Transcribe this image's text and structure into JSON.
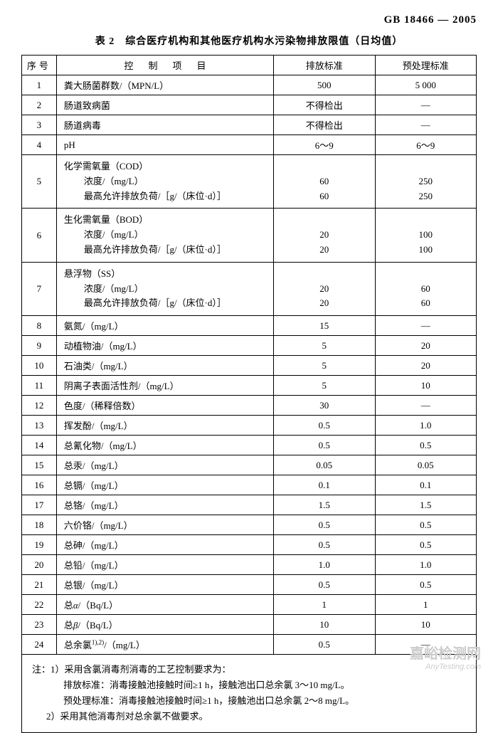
{
  "header": {
    "standard_code": "GB 18466 — 2005"
  },
  "title": "表 2　综合医疗机构和其他医疗机构水污染物排放限值（日均值）",
  "columns": {
    "seq": "序号",
    "item": "控　制　项　目",
    "std": "排放标准",
    "pre": "预处理标准"
  },
  "rows": [
    {
      "seq": "1",
      "item": "粪大肠菌群数/（MPN/L）",
      "std": "500",
      "pre": "5 000"
    },
    {
      "seq": "2",
      "item": "肠道致病菌",
      "std": "不得检出",
      "pre": "—"
    },
    {
      "seq": "3",
      "item": "肠道病毒",
      "std": "不得检出",
      "pre": "—"
    },
    {
      "seq": "4",
      "item": "pH",
      "std": "6～9",
      "pre": "6～9"
    },
    {
      "seq": "5",
      "multi": true,
      "main": "化学需氧量（COD）",
      "sub1": "浓度/（mg/L）",
      "sub2": "最高允许排放负荷/［g/（床位·d）］",
      "std1": "60",
      "std2": "60",
      "pre1": "250",
      "pre2": "250"
    },
    {
      "seq": "6",
      "multi": true,
      "main": "生化需氧量（BOD）",
      "sub1": "浓度/（mg/L）",
      "sub2": "最高允许排放负荷/［g/（床位·d）］",
      "std1": "20",
      "std2": "20",
      "pre1": "100",
      "pre2": "100"
    },
    {
      "seq": "7",
      "multi": true,
      "main": "悬浮物（SS）",
      "sub1": "浓度/（mg/L）",
      "sub2": "最高允许排放负荷/［g/（床位·d）］",
      "std1": "20",
      "std2": "20",
      "pre1": "60",
      "pre2": "60"
    },
    {
      "seq": "8",
      "item": "氨氮/（mg/L）",
      "std": "15",
      "pre": "—"
    },
    {
      "seq": "9",
      "item": "动植物油/（mg/L）",
      "std": "5",
      "pre": "20"
    },
    {
      "seq": "10",
      "item": "石油类/（mg/L）",
      "std": "5",
      "pre": "20"
    },
    {
      "seq": "11",
      "item": "阴离子表面活性剂/（mg/L）",
      "std": "5",
      "pre": "10"
    },
    {
      "seq": "12",
      "item": "色度/（稀释倍数）",
      "std": "30",
      "pre": "—"
    },
    {
      "seq": "13",
      "item": "挥发酚/（mg/L）",
      "std": "0.5",
      "pre": "1.0"
    },
    {
      "seq": "14",
      "item": "总氰化物/（mg/L）",
      "std": "0.5",
      "pre": "0.5"
    },
    {
      "seq": "15",
      "item": "总汞/（mg/L）",
      "std": "0.05",
      "pre": "0.05"
    },
    {
      "seq": "16",
      "item": "总镉/（mg/L）",
      "std": "0.1",
      "pre": "0.1"
    },
    {
      "seq": "17",
      "item": "总铬/（mg/L）",
      "std": "1.5",
      "pre": "1.5"
    },
    {
      "seq": "18",
      "item": "六价铬/（mg/L）",
      "std": "0.5",
      "pre": "0.5"
    },
    {
      "seq": "19",
      "item": "总砷/（mg/L）",
      "std": "0.5",
      "pre": "0.5"
    },
    {
      "seq": "20",
      "item": "总铅/（mg/L）",
      "std": "1.0",
      "pre": "1.0"
    },
    {
      "seq": "21",
      "item": "总银/（mg/L）",
      "std": "0.5",
      "pre": "0.5"
    },
    {
      "seq": "22",
      "item_html": "总<i>α</i>/（Bq/L）",
      "std": "1",
      "pre": "1"
    },
    {
      "seq": "23",
      "item_html": "总<i>β</i>/（Bq/L）",
      "std": "10",
      "pre": "10"
    },
    {
      "seq": "24",
      "item_html": "总余氯<sup>1),2)</sup>/（mg/L）",
      "std": "0.5",
      "pre": "—"
    }
  ],
  "notes": {
    "line1": "注：1）采用含氯消毒剂消毒的工艺控制要求为：",
    "line2": "排放标准：消毒接触池接触时间≥1 h，接触池出口总余氯 3～10 mg/L。",
    "line3": "预处理标准：消毒接触池接触时间≥1 h，接触池出口总余氯 2～8 mg/L。",
    "line4": "2）采用其他消毒剂对总余氯不做要求。"
  },
  "watermark": {
    "cn": "嘉峪检测网",
    "en": "AnyTesting.com"
  }
}
